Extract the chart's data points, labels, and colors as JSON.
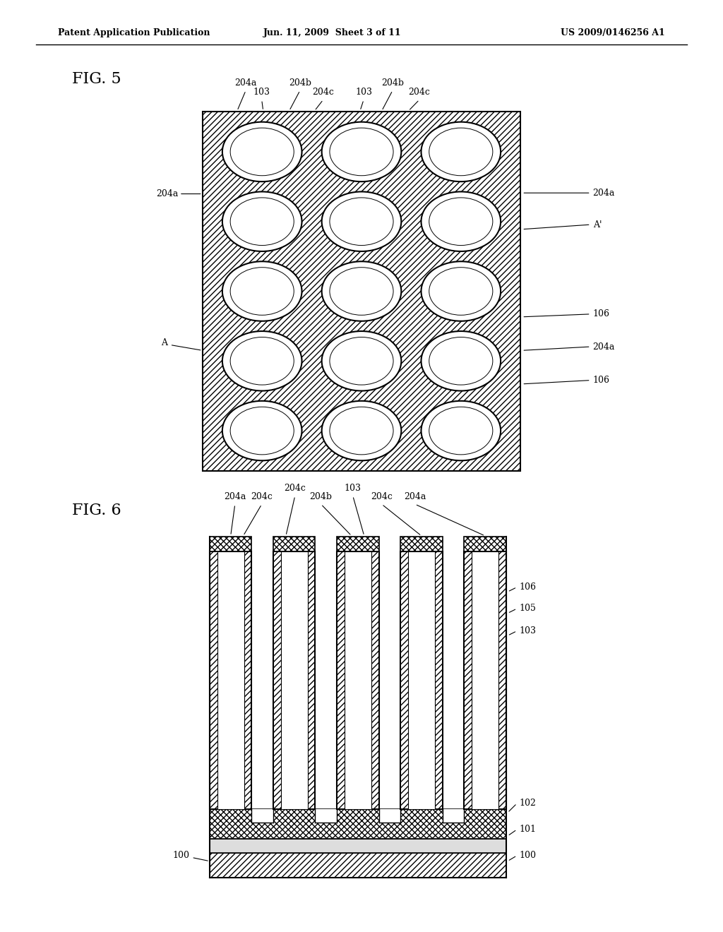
{
  "header_left": "Patent Application Publication",
  "header_center": "Jun. 11, 2009  Sheet 3 of 11",
  "header_right": "US 2009/0146256 A1",
  "fig5_title": "FIG. 5",
  "fig6_title": "FIG. 6",
  "bg_color": "#ffffff"
}
